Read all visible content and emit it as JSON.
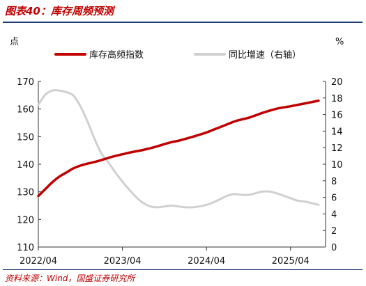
{
  "figure_title": "图表40：库存周频预测",
  "source_note": "资料来源：Wind，国盛证券研究所",
  "chart_data": {
    "type": "line",
    "title": "",
    "y_left_unit": "点",
    "y_right_unit": "%",
    "y_left_range": [
      110,
      170
    ],
    "y_left_ticks": [
      110,
      120,
      130,
      140,
      150,
      160,
      170
    ],
    "y_right_range": [
      0,
      20
    ],
    "y_right_ticks": [
      0,
      2,
      4,
      6,
      8,
      10,
      12,
      14,
      16,
      18,
      20
    ],
    "x_range": [
      "2022-04",
      "2025-09"
    ],
    "x_tick_labels": [
      "2022/04",
      "2023/04",
      "2024/04",
      "2025/04"
    ],
    "grid": false,
    "legend_position": "top",
    "series": [
      {
        "name": "库存高频指数",
        "axis": "left",
        "color": "#c00000",
        "points": [
          [
            "2022-04",
            128.5
          ],
          [
            "2022-05",
            131
          ],
          [
            "2022-06",
            133.5
          ],
          [
            "2022-07",
            135.5
          ],
          [
            "2022-08",
            137
          ],
          [
            "2022-09",
            138.5
          ],
          [
            "2022-10",
            139.5
          ],
          [
            "2022-11",
            140.2
          ],
          [
            "2022-12",
            140.8
          ],
          [
            "2023-01",
            141.5
          ],
          [
            "2023-02",
            142.3
          ],
          [
            "2023-03",
            143
          ],
          [
            "2023-04",
            143.6
          ],
          [
            "2023-05",
            144.2
          ],
          [
            "2023-06",
            144.7
          ],
          [
            "2023-07",
            145.2
          ],
          [
            "2023-08",
            145.8
          ],
          [
            "2023-09",
            146.5
          ],
          [
            "2023-10",
            147.3
          ],
          [
            "2023-11",
            148
          ],
          [
            "2023-12",
            148.5
          ],
          [
            "2024-01",
            149.2
          ],
          [
            "2024-02",
            149.9
          ],
          [
            "2024-03",
            150.7
          ],
          [
            "2024-04",
            151.5
          ],
          [
            "2024-05",
            152.5
          ],
          [
            "2024-06",
            153.5
          ],
          [
            "2024-07",
            154.5
          ],
          [
            "2024-08",
            155.5
          ],
          [
            "2024-09",
            156.2
          ],
          [
            "2024-10",
            156.8
          ],
          [
            "2024-11",
            157.7
          ],
          [
            "2024-12",
            158.6
          ],
          [
            "2025-01",
            159.4
          ],
          [
            "2025-02",
            160.1
          ],
          [
            "2025-03",
            160.6
          ],
          [
            "2025-04",
            161
          ],
          [
            "2025-05",
            161.5
          ],
          [
            "2025-06",
            162
          ],
          [
            "2025-07",
            162.5
          ],
          [
            "2025-08",
            163
          ]
        ]
      },
      {
        "name": "同比增速（右轴）",
        "axis": "right",
        "color": "#d0d0d0",
        "points": [
          [
            "2022-04",
            17.2
          ],
          [
            "2022-05",
            18.4
          ],
          [
            "2022-06",
            18.9
          ],
          [
            "2022-07",
            18.9
          ],
          [
            "2022-08",
            18.7
          ],
          [
            "2022-09",
            18.3
          ],
          [
            "2022-10",
            17
          ],
          [
            "2022-11",
            15.2
          ],
          [
            "2022-12",
            13.1
          ],
          [
            "2023-01",
            11.3
          ],
          [
            "2023-02",
            10.2
          ],
          [
            "2023-03",
            9
          ],
          [
            "2023-04",
            7.9
          ],
          [
            "2023-05",
            6.9
          ],
          [
            "2023-06",
            6
          ],
          [
            "2023-07",
            5.3
          ],
          [
            "2023-08",
            4.9
          ],
          [
            "2023-09",
            4.8
          ],
          [
            "2023-10",
            4.9
          ],
          [
            "2023-11",
            5
          ],
          [
            "2023-12",
            4.9
          ],
          [
            "2024-01",
            4.8
          ],
          [
            "2024-02",
            4.8
          ],
          [
            "2024-03",
            4.9
          ],
          [
            "2024-04",
            5.1
          ],
          [
            "2024-05",
            5.4
          ],
          [
            "2024-06",
            5.8
          ],
          [
            "2024-07",
            6.2
          ],
          [
            "2024-08",
            6.4
          ],
          [
            "2024-09",
            6.3
          ],
          [
            "2024-10",
            6.3
          ],
          [
            "2024-11",
            6.5
          ],
          [
            "2024-12",
            6.7
          ],
          [
            "2025-01",
            6.7
          ],
          [
            "2025-02",
            6.5
          ],
          [
            "2025-03",
            6.2
          ],
          [
            "2025-04",
            5.9
          ],
          [
            "2025-05",
            5.6
          ],
          [
            "2025-06",
            5.5
          ],
          [
            "2025-07",
            5.3
          ],
          [
            "2025-08",
            5.1
          ]
        ]
      }
    ]
  }
}
